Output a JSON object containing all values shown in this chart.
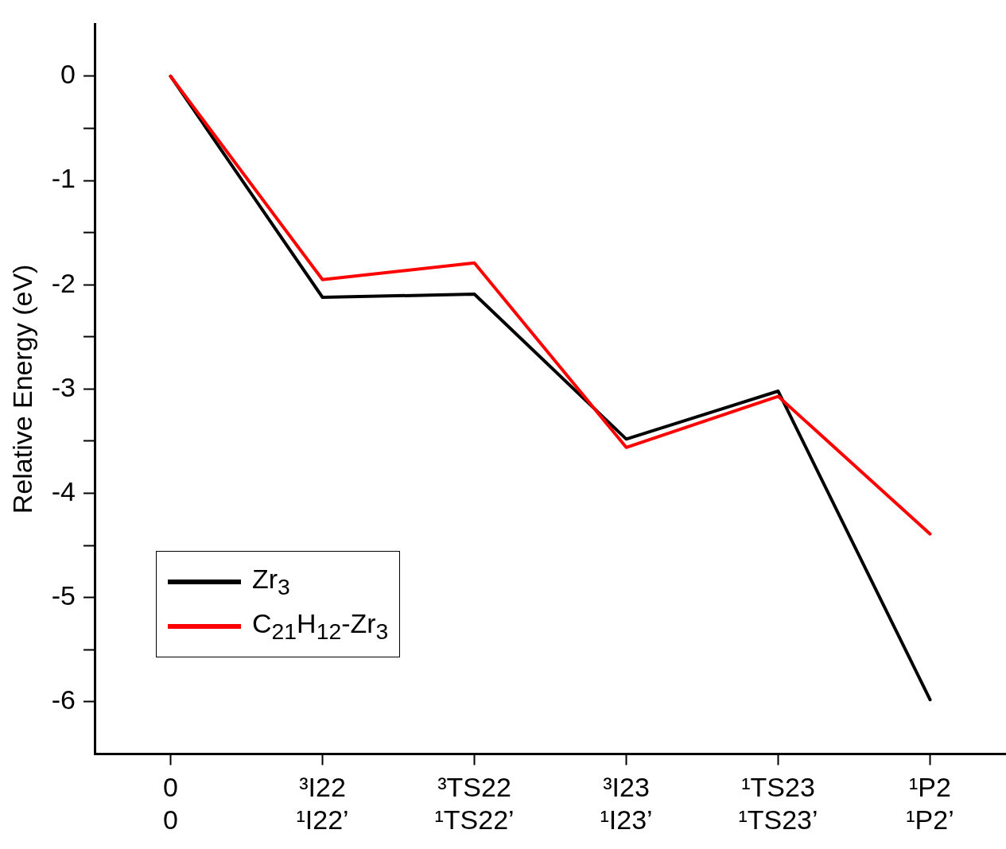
{
  "chart_data": {
    "type": "line",
    "ylabel": "Relative Energy (eV)",
    "ylim": [
      -6.5,
      0.5
    ],
    "categories": [
      "0\n0",
      "³I22\n¹I22’",
      "³TS22\n¹TS22’",
      "³I23\n¹I23’",
      "¹TS23\n¹TS23’",
      "¹P2\n¹P2’"
    ],
    "yticks": [
      0,
      {
        "value": -0.5,
        "label": null
      },
      -1,
      {
        "value": -1.5,
        "label": null
      },
      -2,
      {
        "value": -2.5,
        "label": null
      },
      -3,
      {
        "value": -3.5,
        "label": null
      },
      -4,
      {
        "value": -4.5,
        "label": null
      },
      -5,
      {
        "value": -5.5,
        "label": null
      },
      -6
    ],
    "series": [
      {
        "name": "Zr$_{3}$",
        "color": "#000000",
        "values": [
          0,
          -2.12,
          -2.09,
          -3.48,
          -3.02,
          -5.98
        ]
      },
      {
        "name": "C$_{21}$H$_{12}$-Zr$_{3}$",
        "color": "#ff0000",
        "values": [
          0,
          -1.95,
          -1.79,
          -3.56,
          -3.07,
          -4.39
        ]
      }
    ],
    "grid": false,
    "legend": "bottom left",
    "marker": "none",
    "line_style": "solid"
  }
}
